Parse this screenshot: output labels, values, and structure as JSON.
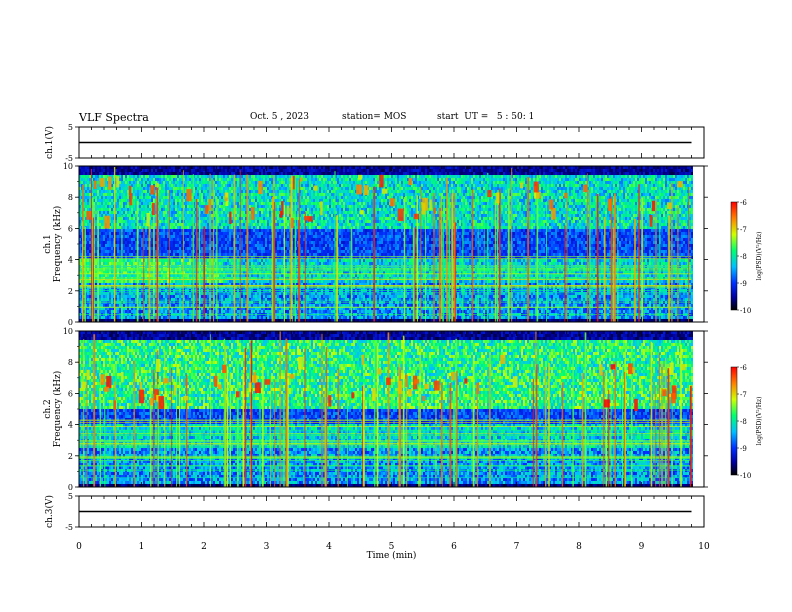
{
  "header": {
    "title": "VLF Spectra",
    "date": "Oct. 5 , 2023",
    "station": "station= MOS",
    "start": "start  UT =   5 : 50: 1"
  },
  "colors": {
    "background": "#000000",
    "colormap": [
      "#000000",
      "#00004a",
      "#0000c8",
      "#0050ff",
      "#00c8ff",
      "#00ff60",
      "#c8ff00",
      "#ffa000",
      "#ff0000"
    ]
  },
  "chart_data": [
    {
      "type": "line",
      "name": "ch1-waveform",
      "ylabel": "ch.1(V)",
      "ylim": [
        -5,
        5
      ],
      "yticks": [
        "5",
        "-5"
      ],
      "x": [
        0,
        9.8
      ],
      "values": [
        0,
        0
      ]
    },
    {
      "type": "heatmap",
      "name": "ch1-spectrogram",
      "ylabel": "ch.1\nFrequency (kHz)",
      "ylim": [
        0,
        10
      ],
      "yticks": [
        "0",
        "2",
        "4",
        "6",
        "8",
        "10"
      ],
      "xlim": [
        0,
        10
      ],
      "data_end_min": 9.8,
      "colorbar": {
        "label": "log(PSD)(V²/Hz)",
        "ticks": [
          "-6",
          "-7",
          "-8",
          "-9",
          "-10"
        ],
        "range": [
          -10,
          -6
        ]
      },
      "features": [
        "broadband sferics 0-10 kHz",
        "banded emissions 0.5-4 kHz",
        "enhanced band 6-9.5 kHz",
        "band structure changes at ~2.3 min"
      ]
    },
    {
      "type": "heatmap",
      "name": "ch2-spectrogram",
      "ylabel": "ch.2\nFrequency (kHz)",
      "ylim": [
        0,
        10
      ],
      "yticks": [
        "0",
        "2",
        "4",
        "6",
        "8",
        "10"
      ],
      "xlim": [
        0,
        10
      ],
      "data_end_min": 9.8,
      "colorbar": {
        "label": "log(PSD)(V²/Hz)",
        "ticks": [
          "-6",
          "-7",
          "-8",
          "-9",
          "-10"
        ],
        "range": [
          -10,
          -6
        ]
      },
      "features": [
        "broadband sferics 0-10 kHz",
        "banded emissions 0.5-4 kHz",
        "intense band 5-9 kHz"
      ]
    },
    {
      "type": "line",
      "name": "ch3-waveform",
      "ylabel": "ch.3(V)",
      "ylim": [
        -5,
        5
      ],
      "yticks": [
        "5",
        "-5"
      ],
      "x": [
        0,
        9.8
      ],
      "values": [
        0,
        0
      ]
    }
  ],
  "xaxis": {
    "label": "Time (min)",
    "ticks": [
      "0",
      "1",
      "2",
      "3",
      "4",
      "5",
      "6",
      "7",
      "8",
      "9",
      "10"
    ]
  }
}
